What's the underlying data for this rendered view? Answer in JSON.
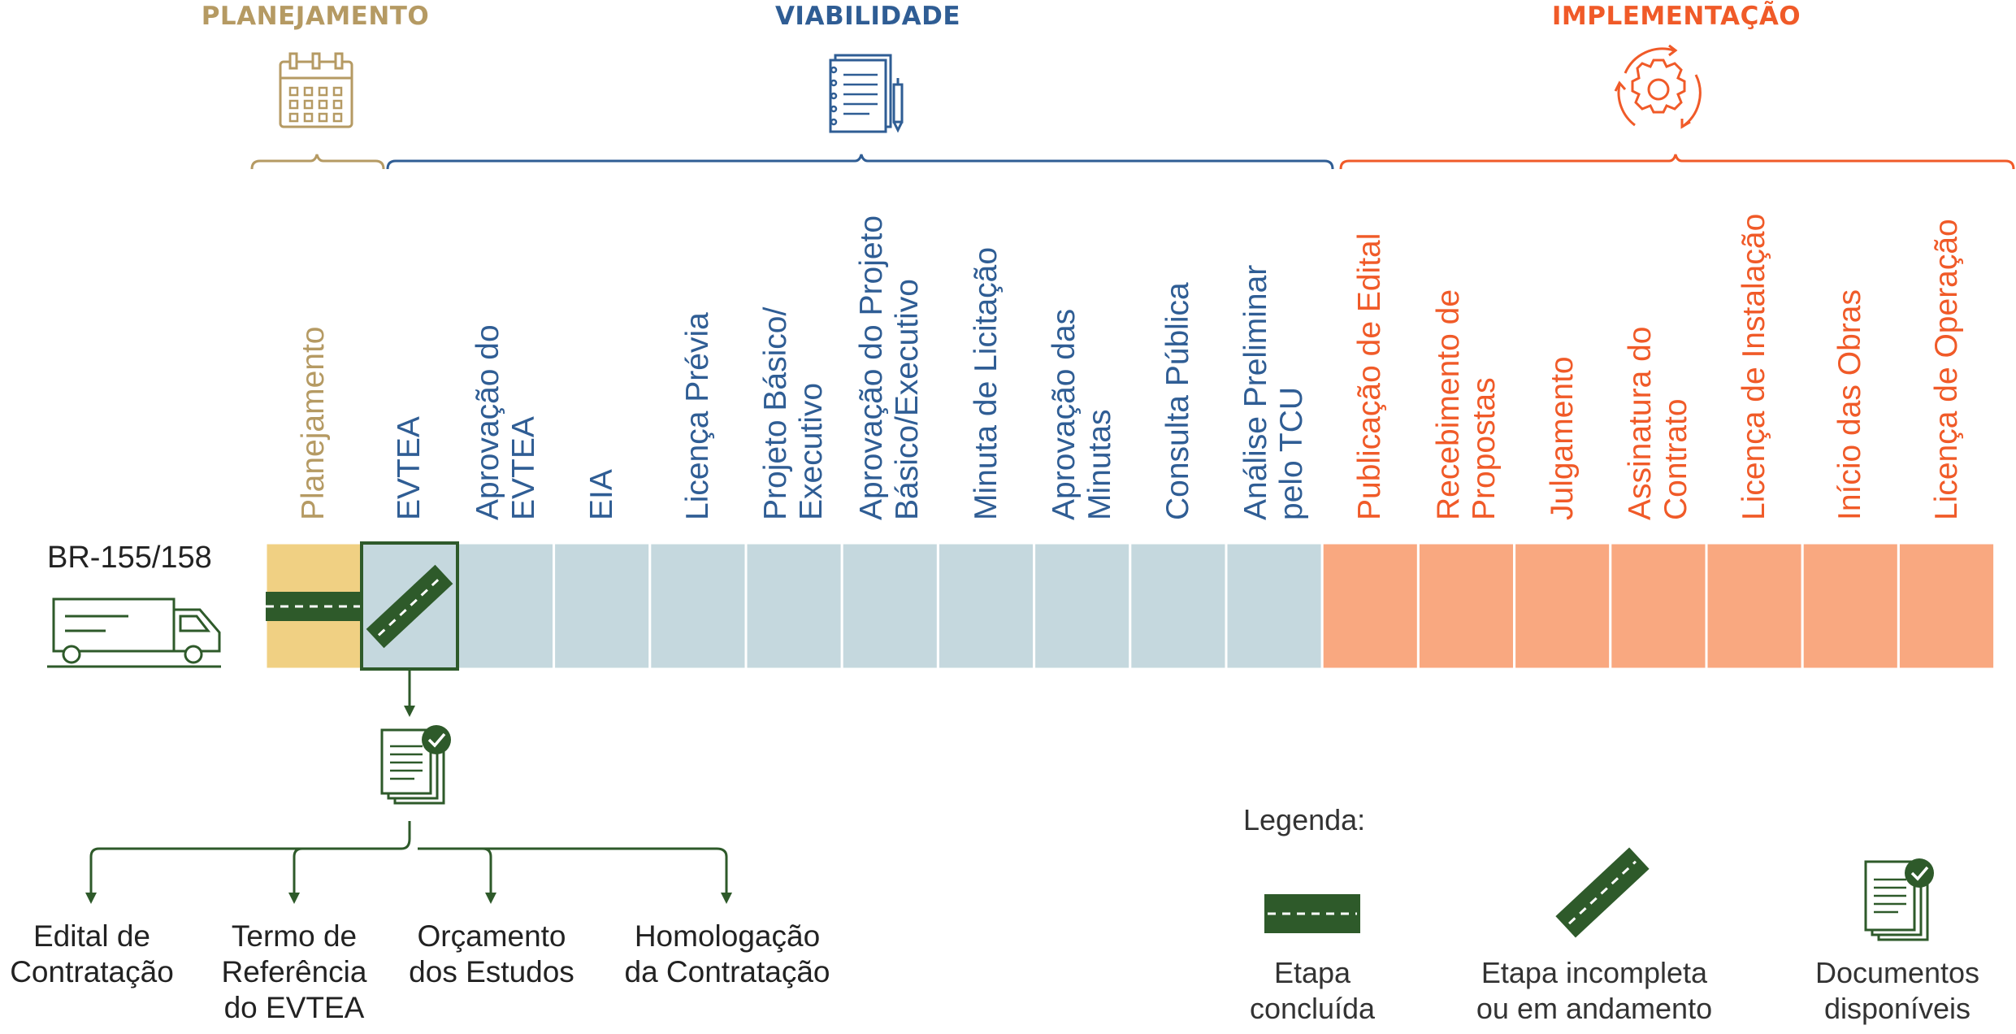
{
  "colors": {
    "planejamento": "#b59a63",
    "viabilidade": "#2f5d94",
    "implementacao": "#f05a28",
    "green": "#2e5a2a",
    "yellow_fill": "#f0d083",
    "blue_fill": "#c5d8de",
    "orange_fill": "#f9a880"
  },
  "phases": {
    "planejamento": {
      "title": "PLANEJAMENTO",
      "icon": "calendar-icon"
    },
    "viabilidade": {
      "title": "VIABILIDADE",
      "icon": "notepad-pen-icon"
    },
    "implementacao": {
      "title": "IMPLEMENTAÇÃO",
      "icon": "gear-cycle-icon"
    }
  },
  "stages": [
    {
      "label": "Planejamento",
      "phase": "planejamento",
      "status": "concluida"
    },
    {
      "label": "EVTEA",
      "phase": "viabilidade",
      "status": "em_andamento"
    },
    {
      "label": "Aprovação do\nEVTEA",
      "phase": "viabilidade",
      "status": "pendente"
    },
    {
      "label": "EIA",
      "phase": "viabilidade",
      "status": "pendente"
    },
    {
      "label": "Licença Prévia",
      "phase": "viabilidade",
      "status": "pendente"
    },
    {
      "label": "Projeto Básico/\nExecutivo",
      "phase": "viabilidade",
      "status": "pendente"
    },
    {
      "label": "Aprovação do Projeto\nBásico/Executivo",
      "phase": "viabilidade",
      "status": "pendente"
    },
    {
      "label": "Minuta de Licitação",
      "phase": "viabilidade",
      "status": "pendente"
    },
    {
      "label": "Aprovação das\nMinutas",
      "phase": "viabilidade",
      "status": "pendente"
    },
    {
      "label": "Consulta Pública",
      "phase": "viabilidade",
      "status": "pendente"
    },
    {
      "label": "Análise Preliminar\npelo TCU",
      "phase": "viabilidade",
      "status": "pendente"
    },
    {
      "label": "Publicação de Edital",
      "phase": "implementacao",
      "status": "pendente"
    },
    {
      "label": "Recebimento de\nPropostas",
      "phase": "implementacao",
      "status": "pendente"
    },
    {
      "label": "Julgamento",
      "phase": "implementacao",
      "status": "pendente"
    },
    {
      "label": "Assinatura do\nContrato",
      "phase": "implementacao",
      "status": "pendente"
    },
    {
      "label": "Licença de Instalação",
      "phase": "implementacao",
      "status": "pendente"
    },
    {
      "label": "Início das Obras",
      "phase": "implementacao",
      "status": "pendente"
    },
    {
      "label": "Licença de Operação",
      "phase": "implementacao",
      "status": "pendente"
    }
  ],
  "route": {
    "name": "BR-155/158",
    "icon": "truck-icon"
  },
  "documents": {
    "icon": "documents-check-icon",
    "items": [
      {
        "label": "Edital de\nContratação"
      },
      {
        "label": "Termo de\nReferência\ndo EVTEA"
      },
      {
        "label": "Orçamento\ndos Estudos"
      },
      {
        "label": "Homologação\nda Contratação"
      }
    ]
  },
  "legend": {
    "title": "Legenda:",
    "items": [
      {
        "label": "Etapa\nconcluída",
        "icon": "road-complete-icon"
      },
      {
        "label": "Etapa incompleta\nou em andamento",
        "icon": "road-diagonal-icon"
      },
      {
        "label": "Documentos\ndisponíveis",
        "icon": "documents-check-icon"
      }
    ]
  }
}
